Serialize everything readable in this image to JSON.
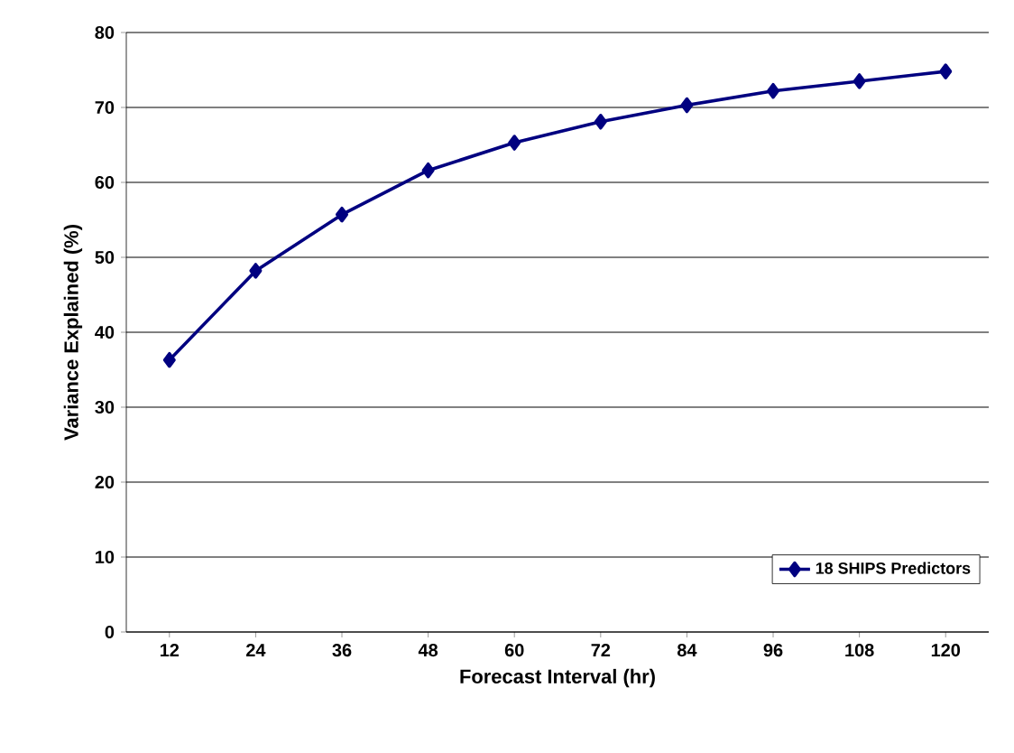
{
  "chart_data": {
    "type": "line",
    "xlabel": "Forecast Interval (hr)",
    "ylabel": "Variance Explained (%)",
    "categories": [
      "12",
      "24",
      "36",
      "48",
      "60",
      "72",
      "84",
      "96",
      "108",
      "120"
    ],
    "series": [
      {
        "name": "18 SHIPS Predictors",
        "color": "#000080",
        "values": [
          36.3,
          48.2,
          55.7,
          61.6,
          65.3,
          68.1,
          70.3,
          72.2,
          73.5,
          74.8
        ]
      }
    ],
    "ylim": [
      0,
      80
    ],
    "yticks": [
      0,
      10,
      20,
      30,
      40,
      50,
      60,
      70,
      80
    ],
    "grid": "y",
    "legend": "bottom right",
    "marker": "diamond",
    "line_style": "solid"
  }
}
